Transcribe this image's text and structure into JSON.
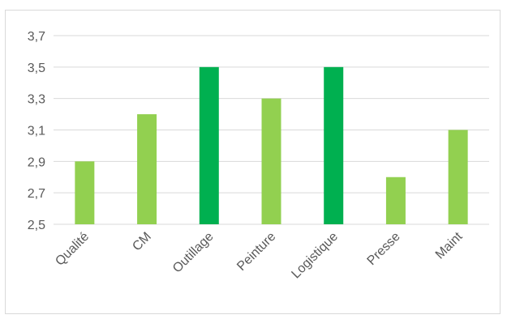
{
  "chart_data": {
    "type": "bar",
    "categories": [
      "Qualité",
      "CM",
      "Outillage",
      "Peinture",
      "Logistique",
      "Presse",
      "Maint"
    ],
    "values": [
      2.9,
      3.2,
      3.5,
      3.3,
      3.5,
      2.8,
      3.1
    ],
    "ylim": [
      2.5,
      3.7
    ],
    "yticks": [
      "2,5",
      "2,7",
      "2,9",
      "3,1",
      "3,3",
      "3,5",
      "3,7"
    ],
    "grid": true,
    "legend": "none",
    "colors": {
      "light_bar": "#92d050",
      "dark_bar": "#00b050",
      "gridline": "#d9d9d9",
      "text": "#595959"
    },
    "bar_color_keys": [
      "light_bar",
      "light_bar",
      "dark_bar",
      "light_bar",
      "dark_bar",
      "light_bar",
      "light_bar"
    ]
  }
}
